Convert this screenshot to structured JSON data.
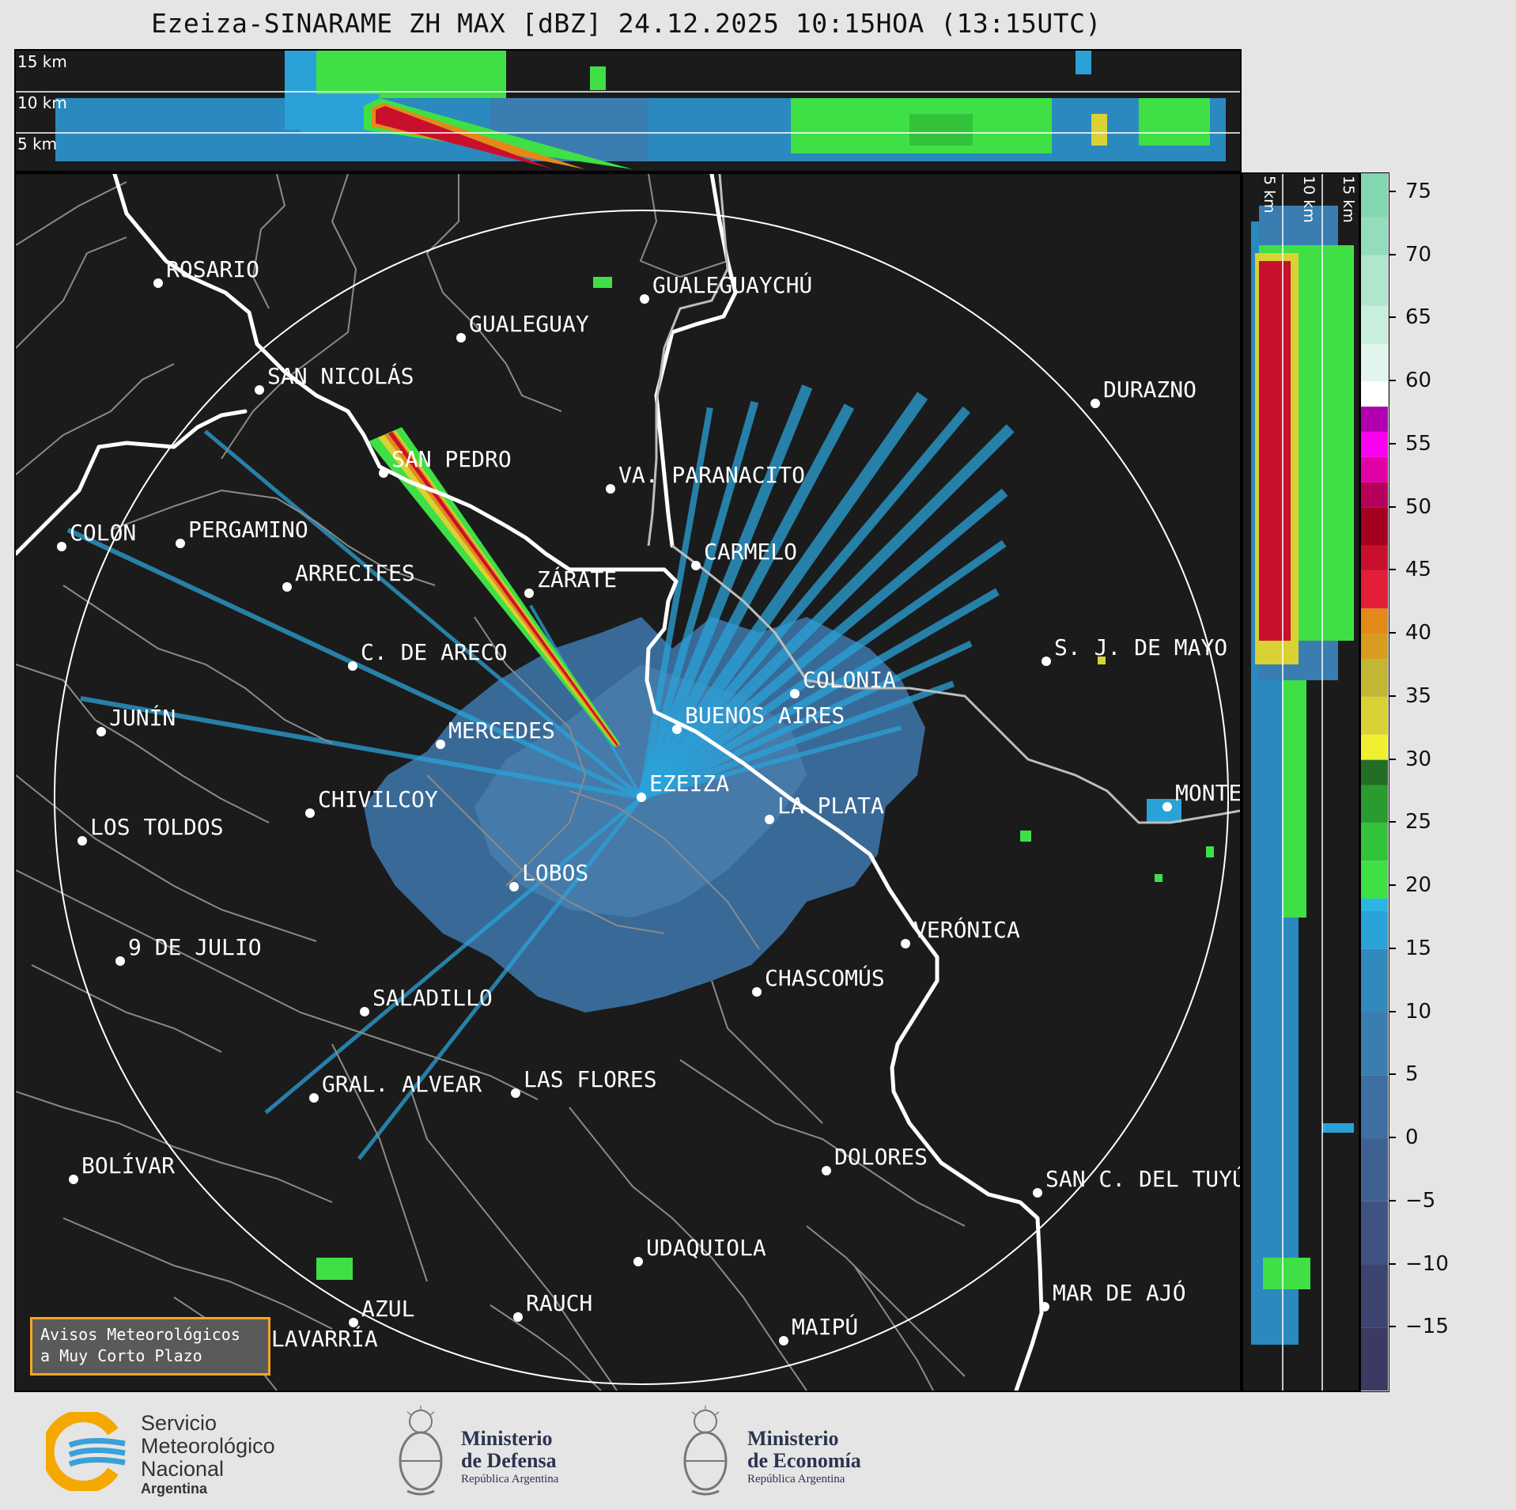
{
  "title": "Ezeiza-SINARAME ZH MAX [dBZ] 24.12.2025 10:15HOA (13:15UTC)",
  "top_panel": {
    "height_labels": [
      "15 km",
      "10 km",
      "5 km"
    ]
  },
  "side_panel": {
    "height_labels": [
      "5 km",
      "10 km",
      "15 km"
    ]
  },
  "colorbar": {
    "unit": "dBZ",
    "ticks": [
      "75",
      "70",
      "65",
      "60",
      "55",
      "50",
      "45",
      "40",
      "35",
      "30",
      "25",
      "20",
      "15",
      "10",
      "5",
      "0",
      "−5",
      "−10",
      "−15"
    ],
    "tick_values": [
      75,
      70,
      65,
      60,
      55,
      50,
      45,
      40,
      35,
      30,
      25,
      20,
      15,
      10,
      5,
      0,
      -5,
      -10,
      -15
    ],
    "range": [
      -20,
      76.5
    ],
    "color_stops": [
      {
        "from": -20,
        "color": "#3b3a63"
      },
      {
        "from": -15,
        "color": "#3e4470"
      },
      {
        "from": -10,
        "color": "#3f5282"
      },
      {
        "from": -5,
        "color": "#3f6192"
      },
      {
        "from": 0,
        "color": "#3e6fa0"
      },
      {
        "from": 5,
        "color": "#3a7db0"
      },
      {
        "from": 10,
        "color": "#3189bd"
      },
      {
        "from": 15,
        "color": "#2aa2d8"
      },
      {
        "from": 18,
        "color": "#2ab5e5"
      },
      {
        "from": 19,
        "color": "#3fe045"
      },
      {
        "from": 22,
        "color": "#33c33a"
      },
      {
        "from": 25,
        "color": "#2a9b2f"
      },
      {
        "from": 28,
        "color": "#236e26"
      },
      {
        "from": 30,
        "color": "#f1ef32"
      },
      {
        "from": 32,
        "color": "#d9d234"
      },
      {
        "from": 35,
        "color": "#c4b635"
      },
      {
        "from": 38,
        "color": "#d89c1f"
      },
      {
        "from": 40,
        "color": "#e3891a"
      },
      {
        "from": 42,
        "color": "#e21f36"
      },
      {
        "from": 45,
        "color": "#c8102c"
      },
      {
        "from": 47,
        "color": "#a5001f"
      },
      {
        "from": 50,
        "color": "#b6005c"
      },
      {
        "from": 52,
        "color": "#e300a6"
      },
      {
        "from": 54,
        "color": "#f800f0"
      },
      {
        "from": 56,
        "color": "#b000b2"
      },
      {
        "from": 58,
        "color": "#ffffff"
      },
      {
        "from": 60,
        "color": "#e1f5ec"
      },
      {
        "from": 63,
        "color": "#c8eedc"
      },
      {
        "from": 66,
        "color": "#b0e6cc"
      },
      {
        "from": 70,
        "color": "#94dcbc"
      },
      {
        "from": 73,
        "color": "#82d6b0"
      }
    ]
  },
  "map": {
    "radar_site": "EZEIZA",
    "range_ring": "on",
    "cities": [
      {
        "name": "ROSARIO",
        "dot": [
          180,
          138
        ],
        "anchor": "right"
      },
      {
        "name": "GUALEGUAYCHÚ",
        "dot": [
          795,
          158
        ],
        "anchor": "right"
      },
      {
        "name": "GUALEGUAY",
        "dot": [
          563,
          207
        ],
        "anchor": "right"
      },
      {
        "name": "SAN NICOLÁS",
        "dot": [
          308,
          273
        ],
        "anchor": "right"
      },
      {
        "name": "DURAZNO",
        "dot": [
          1365,
          290
        ],
        "anchor": "right"
      },
      {
        "name": "SAN PEDRO",
        "dot": [
          465,
          378
        ],
        "anchor": "right"
      },
      {
        "name": "VA. PARANACITO",
        "dot": [
          752,
          398
        ],
        "anchor": "right"
      },
      {
        "name": "COLON",
        "dot": [
          58,
          471
        ],
        "anchor": "right"
      },
      {
        "name": "PERGAMINO",
        "dot": [
          208,
          467
        ],
        "anchor": "right"
      },
      {
        "name": "CARMELO",
        "dot": [
          860,
          495
        ],
        "anchor": "right"
      },
      {
        "name": "ARRECIFES",
        "dot": [
          343,
          522
        ],
        "anchor": "right"
      },
      {
        "name": "ZÁRATE",
        "dot": [
          649,
          530
        ],
        "anchor": "right"
      },
      {
        "name": "C. DE ARECO",
        "dot": [
          426,
          622
        ],
        "anchor": "right"
      },
      {
        "name": "S. J. DE MAYO",
        "dot": [
          1303,
          616
        ],
        "anchor": "right"
      },
      {
        "name": "COLONIA",
        "dot": [
          985,
          657
        ],
        "anchor": "right"
      },
      {
        "name": "JUNÍN",
        "dot": [
          108,
          705
        ],
        "anchor": "right"
      },
      {
        "name": "BUENOS AIRES",
        "dot": [
          836,
          702
        ],
        "anchor": "right"
      },
      {
        "name": "MERCEDES",
        "dot": [
          537,
          721
        ],
        "anchor": "right"
      },
      {
        "name": "EZEIZA",
        "dot": [
          791,
          788
        ],
        "anchor": "right"
      },
      {
        "name": "CHIVILCOY",
        "dot": [
          372,
          808
        ],
        "anchor": "right"
      },
      {
        "name": "MONTEVIDEO",
        "dot": [
          1456,
          800
        ],
        "anchor": "right"
      },
      {
        "name": "LA PLATA",
        "dot": [
          953,
          816
        ],
        "anchor": "right"
      },
      {
        "name": "LOS TOLDOS",
        "dot": [
          84,
          843
        ],
        "anchor": "right"
      },
      {
        "name": "LOBOS",
        "dot": [
          630,
          901
        ],
        "anchor": "right"
      },
      {
        "name": "VERÓNICA",
        "dot": [
          1125,
          973
        ],
        "anchor": "right"
      },
      {
        "name": "9 DE JULIO",
        "dot": [
          132,
          995
        ],
        "anchor": "right"
      },
      {
        "name": "CHASCOMÚS",
        "dot": [
          937,
          1034
        ],
        "anchor": "right"
      },
      {
        "name": "SALADILLO",
        "dot": [
          441,
          1059
        ],
        "anchor": "right"
      },
      {
        "name": "GRAL. ALVEAR",
        "dot": [
          377,
          1168
        ],
        "anchor": "right"
      },
      {
        "name": "LAS FLORES",
        "dot": [
          632,
          1162
        ],
        "anchor": "right"
      },
      {
        "name": "BOLÍVAR",
        "dot": [
          73,
          1271
        ],
        "anchor": "right"
      },
      {
        "name": "DOLORES",
        "dot": [
          1025,
          1260
        ],
        "anchor": "right"
      },
      {
        "name": "SAN C. DEL TUYÚ",
        "dot": [
          1292,
          1288
        ],
        "anchor": "right"
      },
      {
        "name": "UDAQUIOLA",
        "dot": [
          787,
          1375
        ],
        "anchor": "right"
      },
      {
        "name": "MAR DE AJÓ",
        "dot": [
          1301,
          1432
        ],
        "anchor": "right"
      },
      {
        "name": "RAUCH",
        "dot": [
          635,
          1445
        ],
        "anchor": "right"
      },
      {
        "name": "AZUL",
        "dot": [
          427,
          1452
        ],
        "anchor": "right"
      },
      {
        "name": "MAIPÚ",
        "dot": [
          971,
          1475
        ],
        "anchor": "right"
      },
      {
        "name": "OLAVARRÍA",
        "dot": [
          296,
          1490
        ],
        "anchor": "right"
      }
    ]
  },
  "notice": {
    "line1": "Avisos Meteorológicos",
    "line2": "a Muy Corto Plazo"
  },
  "footer": {
    "smn": {
      "line1": "Servicio",
      "line2": "Meteorológico",
      "line3": "Nacional",
      "line4": "Argentina"
    },
    "defensa": {
      "line1": "Ministerio",
      "line2": "de Defensa",
      "line3": "República Argentina"
    },
    "economia": {
      "line1": "Ministerio",
      "line2": "de Economía",
      "line3": "República Argentina"
    }
  }
}
